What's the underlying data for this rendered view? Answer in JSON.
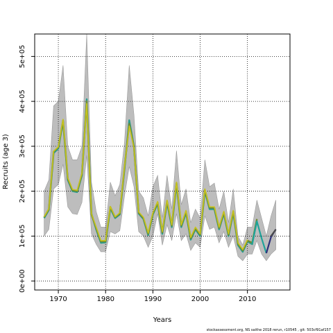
{
  "chart_data": {
    "type": "line",
    "xlabel": "Years",
    "ylabel": "Recruits (age 3)",
    "xlim": [
      1965,
      2019
    ],
    "ylim": [
      -20000,
      550000
    ],
    "x_ticks": [
      1970,
      1980,
      1990,
      2000,
      2010
    ],
    "y_ticks": [
      0,
      100000,
      200000,
      300000,
      400000,
      500000
    ],
    "y_tick_labels": [
      "0e+00",
      "1e+05",
      "2e+05",
      "3e+05",
      "4e+05",
      "5e+05"
    ],
    "grid": true,
    "legend": "none",
    "years": [
      1967,
      1968,
      1969,
      1970,
      1971,
      1972,
      1973,
      1974,
      1975,
      1976,
      1977,
      1978,
      1979,
      1980,
      1981,
      1982,
      1983,
      1984,
      1985,
      1986,
      1987,
      1988,
      1989,
      1990,
      1991,
      1992,
      1993,
      1994,
      1995,
      1996,
      1997,
      1998,
      1999,
      2000,
      2001,
      2002,
      2003,
      2004,
      2005,
      2006,
      2007,
      2008,
      2009,
      2010,
      2011,
      2012,
      2013,
      2014,
      2015,
      2016
    ],
    "band": {
      "lower": [
        100000,
        115000,
        205000,
        215000,
        260000,
        165000,
        150000,
        148000,
        175000,
        280000,
        105000,
        82000,
        65000,
        65000,
        110000,
        105000,
        112000,
        190000,
        255000,
        210000,
        110000,
        100000,
        75000,
        100000,
        150000,
        80000,
        125000,
        90000,
        150000,
        90000,
        105000,
        68000,
        85000,
        75000,
        145000,
        115000,
        120000,
        85000,
        110000,
        75000,
        100000,
        55000,
        45000,
        60000,
        60000,
        90000,
        60000,
        45000,
        60000,
        70000
      ],
      "upper": [
        200000,
        225000,
        390000,
        400000,
        480000,
        300000,
        270000,
        270000,
        300000,
        550000,
        220000,
        155000,
        120000,
        120000,
        220000,
        190000,
        215000,
        310000,
        480000,
        370000,
        200000,
        185000,
        145000,
        210000,
        235000,
        140000,
        235000,
        160000,
        290000,
        170000,
        205000,
        130000,
        160000,
        140000,
        270000,
        210000,
        218000,
        160000,
        200000,
        130000,
        205000,
        100000,
        80000,
        120000,
        120000,
        180000,
        140000,
        100000,
        145000,
        180000
      ]
    },
    "series": [
      {
        "color": "#2a9d8f",
        "x": [
          1967,
          1968,
          1969,
          1970,
          1971,
          1972,
          1973,
          1974,
          1975,
          1976,
          1977,
          1978,
          1979,
          1980,
          1981,
          1982,
          1983,
          1984,
          1985,
          1986,
          1987,
          1988,
          1989,
          1990,
          1991,
          1992,
          1993,
          1994,
          1995,
          1996,
          1997,
          1998,
          1999,
          2000,
          2001,
          2002,
          2003,
          2004,
          2005,
          2006,
          2007,
          2008,
          2009,
          2010,
          2011,
          2012
        ],
        "values": [
          140000,
          158000,
          285000,
          295000,
          355000,
          225000,
          200000,
          198000,
          235000,
          405000,
          150000,
          115000,
          85000,
          86000,
          162000,
          140000,
          148000,
          250000,
          358000,
          300000,
          150000,
          138000,
          102000,
          148000,
          172000,
          105000,
          175000,
          120000,
          215000,
          120000,
          152000,
          92000,
          115000,
          100000,
          200000,
          160000,
          160000,
          115000,
          150000,
          100000,
          152000,
          80000,
          65000,
          88000,
          82000,
          135000
        ]
      },
      {
        "color": "#6d8a34",
        "x": [
          1967,
          1968,
          1969,
          1970,
          1971,
          1972,
          1973,
          1974,
          1975,
          1976,
          1977,
          1978,
          1979,
          1980,
          1981,
          1982,
          1983,
          1984,
          1985,
          1986,
          1987,
          1988,
          1989,
          1990,
          1991,
          1992,
          1993,
          1994,
          1995,
          1996,
          1997,
          1998,
          1999,
          2000,
          2001,
          2002,
          2003,
          2004,
          2005,
          2006,
          2007,
          2008,
          2009,
          2010,
          2011,
          2012
        ],
        "values": [
          142000,
          160000,
          288000,
          298000,
          358000,
          228000,
          202000,
          200000,
          238000,
          400000,
          148000,
          118000,
          88000,
          88000,
          165000,
          142000,
          150000,
          253000,
          350000,
          298000,
          152000,
          140000,
          105000,
          150000,
          175000,
          108000,
          178000,
          123000,
          218000,
          123000,
          155000,
          95000,
          118000,
          103000,
          203000,
          163000,
          163000,
          118000,
          153000,
          103000,
          155000,
          83000,
          68000,
          90000,
          85000,
          138000
        ]
      },
      {
        "color": "#c9c41e",
        "x": [
          1967,
          1968,
          1969,
          1970,
          1971,
          1972,
          1973,
          1974,
          1975,
          1976,
          1977,
          1978,
          1979,
          1980,
          1981,
          1982,
          1983,
          1984,
          1985,
          1986,
          1987,
          1988,
          1989,
          1990,
          1991,
          1992,
          1993,
          1994,
          1995,
          1996,
          1997,
          1998,
          1999,
          2000,
          2001,
          2002,
          2003,
          2004,
          2005,
          2006,
          2007,
          2008,
          2009,
          2010
        ],
        "values": [
          143000,
          161000,
          289000,
          299000,
          360000,
          230000,
          204000,
          202000,
          240000,
          395000,
          150000,
          120000,
          90000,
          90000,
          166000,
          143000,
          152000,
          255000,
          345000,
          297000,
          154000,
          142000,
          107000,
          152000,
          177000,
          110000,
          180000,
          125000,
          220000,
          125000,
          157000,
          97000,
          120000,
          105000,
          205000,
          165000,
          165000,
          120000,
          155000,
          105000,
          157000,
          85000,
          70000,
          92000
        ]
      },
      {
        "color": "#1fa39a",
        "x": [
          2011,
          2012,
          2013,
          2014
        ],
        "values": [
          83000,
          133000,
          95000,
          62000
        ]
      },
      {
        "color": "#2e2f7a",
        "x": [
          2014,
          2015,
          2016
        ],
        "values": [
          62000,
          98000,
          115000
        ]
      },
      {
        "color": "#4a4a4a",
        "x": [
          2015,
          2016
        ],
        "values": [
          100000,
          115000
        ]
      }
    ]
  },
  "footer_text": "stockassessment.org, NS saithe 2018 rerun, r10545 , git: 503cf91af157"
}
